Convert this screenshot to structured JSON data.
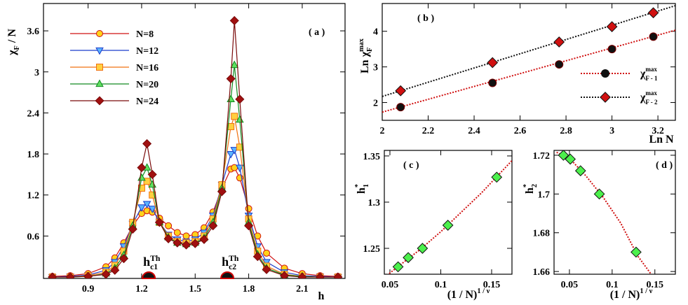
{
  "chart_data": [
    {
      "type": "line",
      "title": "( a )",
      "xlabel": [
        {
          "text": "h"
        }
      ],
      "ylabel": [
        {
          "text": "χ"
        },
        {
          "text": "F",
          "pos": "sub"
        },
        {
          "text": " / N"
        }
      ],
      "xlim": [
        0.65,
        2.34
      ],
      "ylim": [
        -0.02,
        4.0
      ],
      "xticks": [
        0.9,
        1.2,
        1.5,
        1.8,
        2.1
      ],
      "yticks": [
        0.6,
        1.2,
        1.8,
        2.4,
        3,
        3.6
      ],
      "legend": "upper left",
      "x": [
        0.7,
        0.8,
        0.9,
        1.0,
        1.05,
        1.1,
        1.15,
        1.2,
        1.23,
        1.26,
        1.3,
        1.35,
        1.4,
        1.45,
        1.5,
        1.55,
        1.6,
        1.65,
        1.7,
        1.72,
        1.75,
        1.8,
        1.85,
        1.9,
        2.0,
        2.1,
        2.2,
        2.3
      ],
      "series": [
        {
          "name": "N=8",
          "color": "#d01010",
          "marker": "circle",
          "marker_color": "#ffd21a",
          "values": [
            0.01,
            0.02,
            0.05,
            0.15,
            0.28,
            0.5,
            0.75,
            0.93,
            0.97,
            0.95,
            0.86,
            0.75,
            0.65,
            0.6,
            0.62,
            0.72,
            0.95,
            1.3,
            1.58,
            1.6,
            1.45,
            1.0,
            0.6,
            0.35,
            0.13,
            0.05,
            0.02,
            0.01
          ]
        },
        {
          "name": "N=12",
          "color": "#1a3ccc",
          "marker": "tri-down",
          "marker_color": "#5ab4ff",
          "values": [
            0.0,
            0.01,
            0.03,
            0.1,
            0.22,
            0.45,
            0.78,
            1.02,
            1.07,
            1.0,
            0.8,
            0.62,
            0.55,
            0.52,
            0.55,
            0.65,
            0.9,
            1.35,
            1.8,
            1.86,
            1.6,
            0.9,
            0.45,
            0.22,
            0.07,
            0.02,
            0.01,
            0.0
          ]
        },
        {
          "name": "N=16",
          "color": "#f07010",
          "marker": "square",
          "marker_color": "#ffd040",
          "values": [
            0.0,
            0.0,
            0.02,
            0.07,
            0.17,
            0.38,
            0.8,
            1.3,
            1.4,
            1.2,
            0.8,
            0.6,
            0.52,
            0.5,
            0.52,
            0.6,
            0.85,
            1.35,
            2.2,
            2.35,
            1.9,
            0.85,
            0.38,
            0.16,
            0.04,
            0.01,
            0.0,
            0.0
          ]
        },
        {
          "name": "N=20",
          "color": "#108a20",
          "marker": "tri-up",
          "marker_color": "#60e060",
          "values": [
            0.0,
            0.0,
            0.01,
            0.05,
            0.13,
            0.32,
            0.75,
            1.45,
            1.6,
            1.35,
            0.8,
            0.58,
            0.5,
            0.48,
            0.5,
            0.57,
            0.8,
            1.3,
            2.6,
            3.1,
            2.3,
            0.8,
            0.33,
            0.13,
            0.03,
            0.01,
            0.0,
            0.0
          ]
        },
        {
          "name": "N=24",
          "color": "#7a0a0a",
          "marker": "diamond",
          "marker_color": "#a01010",
          "values": [
            0.0,
            0.0,
            0.01,
            0.04,
            0.1,
            0.27,
            0.7,
            1.6,
            1.95,
            1.5,
            0.8,
            0.56,
            0.5,
            0.47,
            0.49,
            0.55,
            0.75,
            1.25,
            2.9,
            3.75,
            2.6,
            0.75,
            0.3,
            0.11,
            0.02,
            0.0,
            0.0,
            0.0
          ]
        }
      ],
      "markers": [
        {
          "x": 1.24,
          "label": [
            {
              "text": "h"
            },
            {
              "text": "c1",
              "pos": "sub"
            },
            {
              "text": "Th",
              "pos": "sup"
            }
          ]
        },
        {
          "x": 1.68,
          "label": [
            {
              "text": "h"
            },
            {
              "text": "c2",
              "pos": "sub"
            },
            {
              "text": "Th",
              "pos": "sup"
            }
          ]
        }
      ]
    },
    {
      "type": "scatter",
      "title": "( b )",
      "xlabel": [
        {
          "text": "Ln N"
        }
      ],
      "ylabel": [
        {
          "text": "Ln χ"
        },
        {
          "text": "max",
          "pos": "sup"
        },
        {
          "text": "F",
          "pos": "sub"
        }
      ],
      "xlim": [
        2,
        3.276
      ],
      "ylim": [
        1.5,
        4.78
      ],
      "xticks": [
        2,
        2.2,
        2.4,
        2.6,
        2.8,
        3,
        3.2
      ],
      "yticks": [
        2,
        3,
        4
      ],
      "legend": "lower right",
      "series": [
        {
          "name": "χ",
          "sup": "max",
          "sub": "F - 1",
          "marker": "circle",
          "marker_color": "#111111",
          "color": "#d01010",
          "x": [
            2.08,
            2.48,
            2.77,
            3.0,
            3.18
          ],
          "values": [
            1.87,
            2.55,
            3.07,
            3.5,
            3.85
          ],
          "fit": {
            "x": [
              2,
              3.276
            ],
            "y": [
              1.73,
              4.03
            ]
          }
        },
        {
          "name": "χ",
          "sup": "max",
          "sub": "F - 2",
          "marker": "diamond",
          "marker_color": "#d01010",
          "color": "#111111",
          "x": [
            2.08,
            2.48,
            2.77,
            3.0,
            3.18
          ],
          "values": [
            2.33,
            3.12,
            3.7,
            4.13,
            4.52
          ],
          "fit": {
            "x": [
              2,
              3.276
            ],
            "y": [
              2.17,
              4.72
            ]
          }
        }
      ]
    },
    {
      "type": "scatter",
      "title": "( c )",
      "xlabel": [
        {
          "text": "(1 / N)"
        },
        {
          "text": "1 / ν",
          "pos": "sup"
        }
      ],
      "ylabel": [
        {
          "text": "h"
        },
        {
          "text": "1",
          "pos": "sub"
        },
        {
          "text": "*",
          "pos": "sup"
        }
      ],
      "xlim": [
        0.0445,
        0.17
      ],
      "ylim": [
        1.222,
        1.356
      ],
      "xticks": [
        0.05,
        0.1,
        0.15
      ],
      "yticks": [
        1.25,
        1.3,
        1.35
      ],
      "series": [
        {
          "marker": "diamond",
          "marker_color": "#4cf04c",
          "color": "#d01010",
          "x": [
            0.058,
            0.068,
            0.082,
            0.107,
            0.155
          ],
          "values": [
            1.23,
            1.24,
            1.25,
            1.275,
            1.327
          ],
          "fit": {
            "x": [
              0.045,
              0.06,
              0.08,
              0.1,
              0.12,
              0.14,
              0.17
            ],
            "y": [
              1.219,
              1.232,
              1.249,
              1.268,
              1.289,
              1.31,
              1.345
            ]
          }
        }
      ]
    },
    {
      "type": "scatter",
      "title": "( d )",
      "xlabel": [
        {
          "text": "(1 / N)"
        },
        {
          "text": "1 / ν",
          "pos": "sup"
        }
      ],
      "ylabel": [
        {
          "text": "h"
        },
        {
          "text": "2",
          "pos": "sub"
        },
        {
          "text": "*",
          "pos": "sup"
        }
      ],
      "xlim": [
        0.032,
        0.174
      ],
      "ylim": [
        1.6586,
        1.7225
      ],
      "xticks": [
        0.05,
        0.1,
        0.15
      ],
      "yticks": [
        1.66,
        1.68,
        1.7,
        1.72
      ],
      "series": [
        {
          "marker": "diamond",
          "marker_color": "#4cf04c",
          "color": "#d01010",
          "x": [
            0.043,
            0.051,
            0.063,
            0.085,
            0.128
          ],
          "values": [
            1.72,
            1.718,
            1.712,
            1.7,
            1.67
          ],
          "fit": {
            "x": [
              0.035,
              0.05,
              0.07,
              0.09,
              0.11,
              0.13,
              0.15
            ],
            "y": [
              1.7215,
              1.7185,
              1.709,
              1.698,
              1.685,
              1.668,
              1.656
            ]
          }
        }
      ]
    }
  ]
}
